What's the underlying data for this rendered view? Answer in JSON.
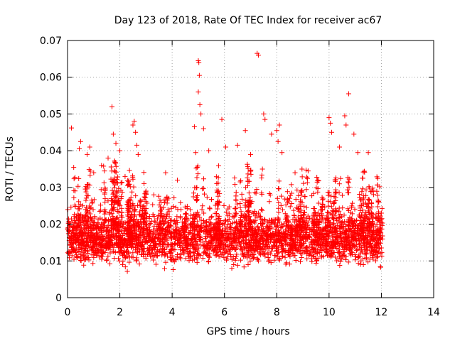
{
  "chart_data": {
    "type": "scatter",
    "title": "Day 123 of 2018, Rate Of TEC Index for receiver ac67",
    "xlabel": "GPS time / hours",
    "ylabel": "ROTI / TECUs",
    "xlim": [
      0,
      14
    ],
    "ylim": [
      0,
      0.07
    ],
    "xticks": [
      0,
      2,
      4,
      6,
      8,
      10,
      12,
      14
    ],
    "yticks": [
      0,
      0.01,
      0.02,
      0.03,
      0.04,
      0.05,
      0.06,
      0.07
    ],
    "xtick_labels": [
      "0",
      "2",
      "4",
      "6",
      "8",
      "10",
      "12",
      "14"
    ],
    "ytick_labels": [
      "0",
      "0.01",
      "0.02",
      "0.03",
      "0.04",
      "0.05",
      "0.06",
      "0.07"
    ],
    "grid": true,
    "marker": "+",
    "color": "#ff0000",
    "series": [
      {
        "name": "ROTI",
        "x_range": [
          0.0,
          12.05
        ],
        "bulk_range": [
          0.006,
          0.03
        ],
        "points": [
          [
            0.15,
            0.0462
          ],
          [
            0.45,
            0.0405
          ],
          [
            0.5,
            0.0425
          ],
          [
            0.75,
            0.039
          ],
          [
            0.85,
            0.041
          ],
          [
            1.0,
            0.034
          ],
          [
            1.3,
            0.036
          ],
          [
            1.55,
            0.038
          ],
          [
            1.7,
            0.052
          ],
          [
            1.75,
            0.0445
          ],
          [
            1.85,
            0.042
          ],
          [
            2.0,
            0.04
          ],
          [
            2.2,
            0.033
          ],
          [
            2.5,
            0.047
          ],
          [
            2.55,
            0.048
          ],
          [
            2.6,
            0.045
          ],
          [
            2.65,
            0.0415
          ],
          [
            2.7,
            0.039
          ],
          [
            3.0,
            0.029
          ],
          [
            3.3,
            0.028
          ],
          [
            3.75,
            0.034
          ],
          [
            4.2,
            0.032
          ],
          [
            4.85,
            0.0465
          ],
          [
            4.9,
            0.0395
          ],
          [
            5.0,
            0.0645
          ],
          [
            5.02,
            0.064
          ],
          [
            5.04,
            0.0605
          ],
          [
            5.0,
            0.056
          ],
          [
            5.06,
            0.0525
          ],
          [
            5.1,
            0.05
          ],
          [
            5.2,
            0.046
          ],
          [
            5.4,
            0.04
          ],
          [
            5.9,
            0.0485
          ],
          [
            6.05,
            0.041
          ],
          [
            6.5,
            0.0415
          ],
          [
            6.8,
            0.0455
          ],
          [
            7.0,
            0.039
          ],
          [
            7.25,
            0.0665
          ],
          [
            7.3,
            0.066
          ],
          [
            7.5,
            0.05
          ],
          [
            7.55,
            0.0485
          ],
          [
            7.8,
            0.0445
          ],
          [
            8.0,
            0.0455
          ],
          [
            8.05,
            0.0425
          ],
          [
            8.1,
            0.047
          ],
          [
            8.2,
            0.0395
          ],
          [
            8.7,
            0.034
          ],
          [
            9.2,
            0.0345
          ],
          [
            10.0,
            0.049
          ],
          [
            10.05,
            0.0475
          ],
          [
            10.1,
            0.045
          ],
          [
            10.4,
            0.041
          ],
          [
            10.6,
            0.0495
          ],
          [
            10.65,
            0.047
          ],
          [
            10.75,
            0.0555
          ],
          [
            10.95,
            0.0445
          ],
          [
            11.1,
            0.0395
          ],
          [
            11.5,
            0.0395
          ],
          [
            11.9,
            0.026
          ],
          [
            12.0,
            0.023
          ]
        ]
      }
    ]
  }
}
